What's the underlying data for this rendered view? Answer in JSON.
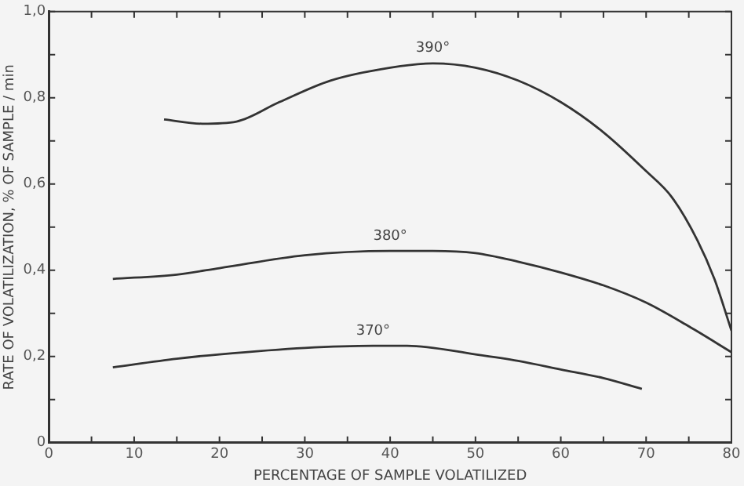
{
  "chart_data": {
    "type": "line",
    "xlabel": "PERCENTAGE OF SAMPLE VOLATILIZED",
    "ylabel": "RATE OF VOLATILIZATION, % OF SAMPLE / min",
    "xlim": [
      0,
      80
    ],
    "ylim": [
      0,
      1.0
    ],
    "xticks": [
      0,
      {
        "value": 5,
        "label": null
      },
      10,
      {
        "value": 15,
        "label": null
      },
      20,
      {
        "value": 25,
        "label": null
      },
      30,
      {
        "value": 35,
        "label": null
      },
      40,
      {
        "value": 45,
        "label": null
      },
      50,
      {
        "value": 55,
        "label": null
      },
      60,
      {
        "value": 65,
        "label": null
      },
      70,
      {
        "value": 75,
        "label": null
      },
      80
    ],
    "yticks": [
      0,
      {
        "value": 0.1,
        "label": null
      },
      {
        "value": 0.2,
        "label": "0,2"
      },
      {
        "value": 0.3,
        "label": null
      },
      {
        "value": 0.4,
        "label": "0,4"
      },
      {
        "value": 0.5,
        "label": null
      },
      {
        "value": 0.6,
        "label": "0,6"
      },
      {
        "value": 0.7,
        "label": null
      },
      {
        "value": 0.8,
        "label": "0,8"
      },
      {
        "value": 0.9,
        "label": null
      },
      {
        "value": 1.0,
        "label": "1,0"
      }
    ],
    "grid": false,
    "legend": false,
    "marker": "none",
    "line_style": "solid",
    "series": [
      {
        "name": "390°",
        "color": "#333333",
        "x": [
          13.5,
          18,
          22,
          27,
          33,
          40,
          45,
          50,
          55,
          60,
          65,
          70,
          73,
          76,
          78,
          80
        ],
        "values": [
          0.75,
          0.74,
          0.745,
          0.79,
          0.84,
          0.87,
          0.88,
          0.87,
          0.84,
          0.79,
          0.72,
          0.63,
          0.57,
          0.47,
          0.38,
          0.26
        ]
      },
      {
        "name": "380°",
        "color": "#333333",
        "x": [
          7.5,
          15,
          20,
          30,
          40,
          45,
          50,
          55,
          60,
          65,
          70,
          75,
          80
        ],
        "values": [
          0.38,
          0.39,
          0.405,
          0.435,
          0.445,
          0.445,
          0.44,
          0.42,
          0.395,
          0.365,
          0.325,
          0.27,
          0.21
        ]
      },
      {
        "name": "370°",
        "color": "#333333",
        "x": [
          7.5,
          15,
          20,
          30,
          38,
          42,
          50,
          55,
          60,
          65,
          69.5
        ],
        "values": [
          0.175,
          0.195,
          0.205,
          0.22,
          0.225,
          0.225,
          0.205,
          0.19,
          0.17,
          0.15,
          0.125
        ]
      }
    ]
  }
}
